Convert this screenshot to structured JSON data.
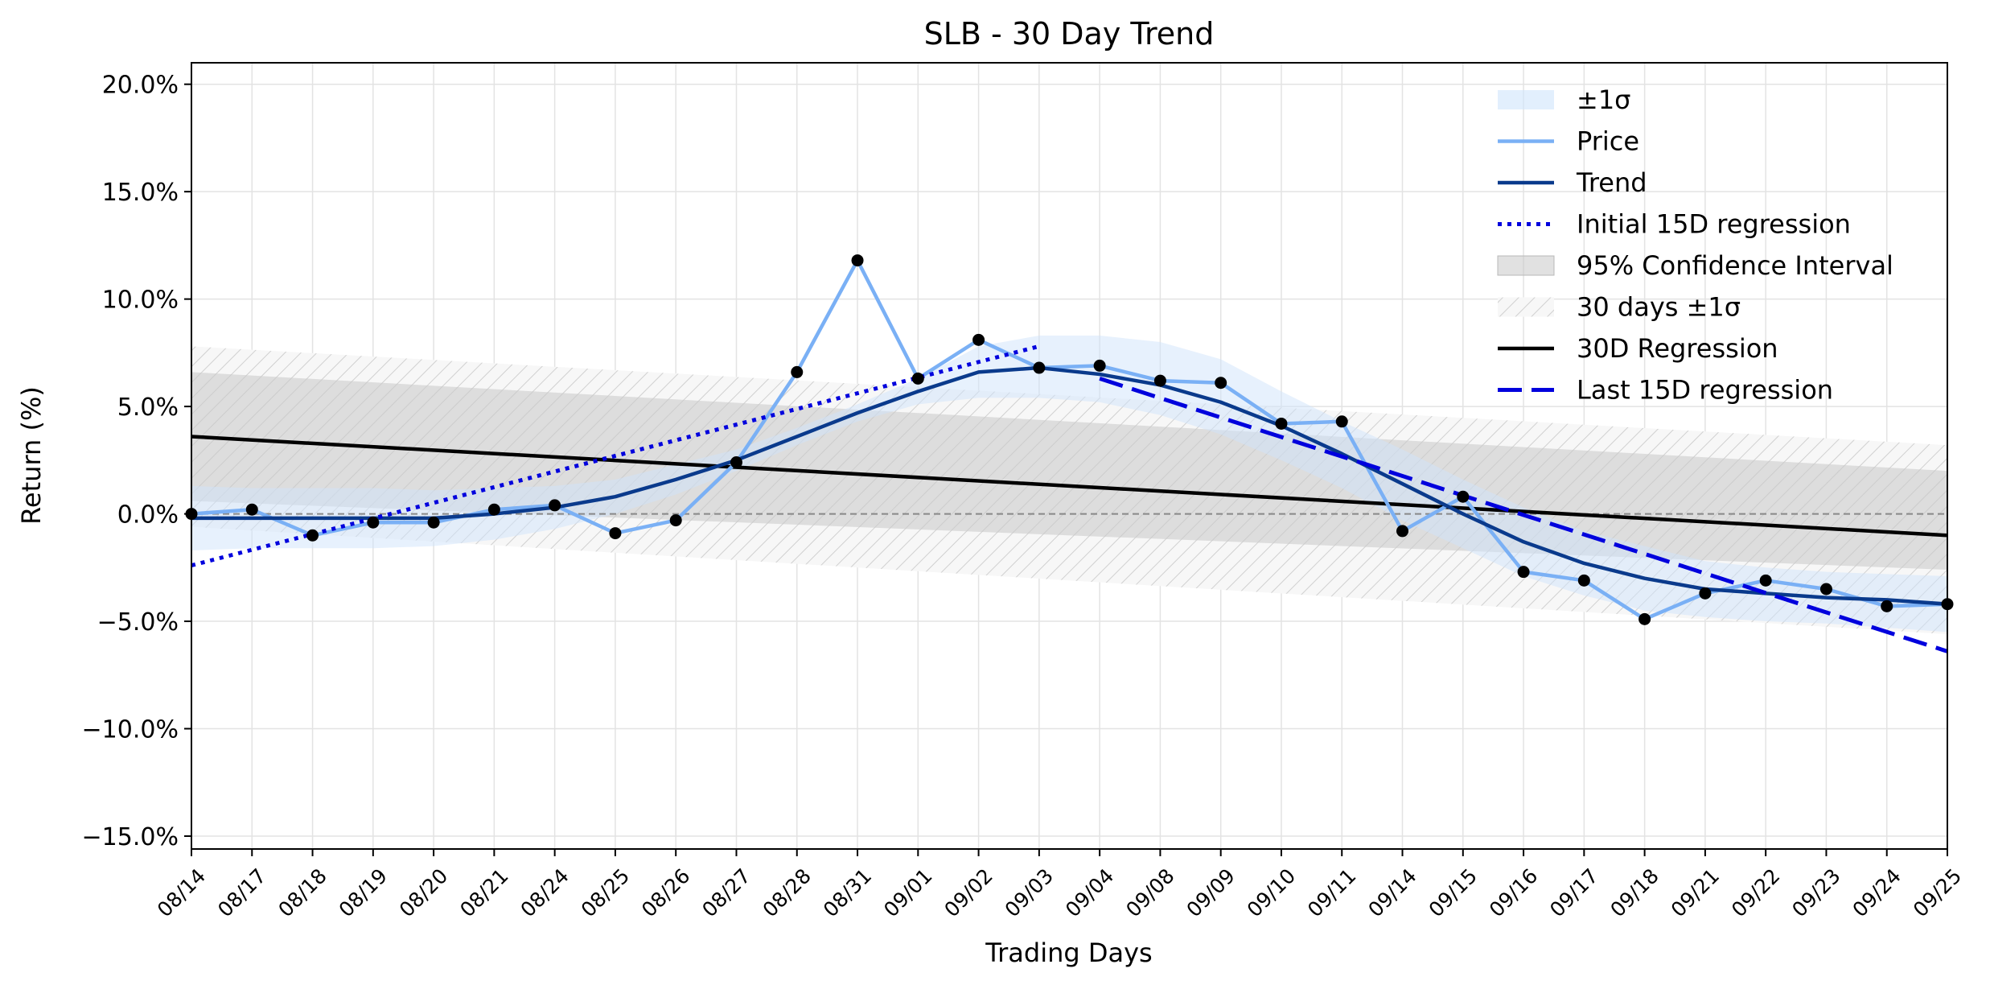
{
  "chart_data": {
    "type": "line",
    "title": "SLB - 30 Day Trend",
    "xlabel": "Trading Days",
    "ylabel": "Return (%)",
    "ylim": [
      -15.6,
      21.0
    ],
    "yticks": [
      20,
      15,
      10,
      5,
      0,
      -5,
      -10,
      -15
    ],
    "ytick_labels": [
      "20.0%",
      "15.0%",
      "10.0%",
      "5.0%",
      "0.0%",
      "−5.0%",
      "−10.0%",
      "−15.0%"
    ],
    "categories": [
      "08/14",
      "08/17",
      "08/18",
      "08/19",
      "08/20",
      "08/21",
      "08/24",
      "08/25",
      "08/26",
      "08/27",
      "08/28",
      "08/31",
      "09/01",
      "09/02",
      "09/03",
      "09/04",
      "09/08",
      "09/09",
      "09/10",
      "09/11",
      "09/14",
      "09/15",
      "09/16",
      "09/17",
      "09/18",
      "09/21",
      "09/22",
      "09/23",
      "09/24",
      "09/25"
    ],
    "grid": true,
    "legend_position": "top-right",
    "zero_line": 0,
    "series": [
      {
        "name": "Price",
        "color": "#7ab0f5",
        "values": [
          0.0,
          0.2,
          -1.0,
          -0.4,
          -0.4,
          0.2,
          0.4,
          -0.9,
          -0.3,
          2.4,
          6.6,
          11.8,
          6.3,
          8.1,
          6.8,
          6.9,
          6.2,
          6.1,
          4.2,
          4.3,
          -0.8,
          0.8,
          -2.7,
          -3.1,
          -4.9,
          -3.7,
          -3.1,
          -3.5,
          -4.3,
          -4.2
        ]
      },
      {
        "name": "Trend",
        "color": "#0a3a8c",
        "values": [
          -0.2,
          -0.2,
          -0.2,
          -0.2,
          -0.2,
          0.0,
          0.3,
          0.8,
          1.6,
          2.5,
          3.6,
          4.7,
          5.7,
          6.6,
          6.8,
          6.5,
          6.0,
          5.2,
          4.1,
          2.8,
          1.4,
          0.0,
          -1.3,
          -2.3,
          -3.0,
          -3.5,
          -3.7,
          -3.9,
          -4.0,
          -4.2
        ]
      },
      {
        "name": "Initial 15D regression",
        "color": "#0000dd",
        "x": [
          0,
          14
        ],
        "values": [
          -2.4,
          7.8
        ]
      },
      {
        "name": "30D Regression",
        "color": "#000000",
        "x": [
          0,
          29
        ],
        "values": [
          3.6,
          -1.0
        ]
      },
      {
        "name": "Last 15D regression",
        "color": "#0000dd",
        "x": [
          15,
          29
        ],
        "values": [
          6.3,
          -6.4
        ]
      }
    ],
    "bands": [
      {
        "name": "±1σ",
        "color": "#cfe4fb",
        "lower": [
          -1.7,
          -1.6,
          -1.6,
          -1.6,
          -1.5,
          -1.2,
          -0.7,
          0.0,
          0.9,
          2.0,
          3.2,
          4.3,
          5.1,
          5.4,
          5.4,
          5.2,
          4.6,
          3.7,
          2.5,
          1.2,
          -0.3,
          -1.6,
          -2.9,
          -3.8,
          -4.5,
          -4.8,
          -5.0,
          -5.1,
          -5.3,
          -5.5
        ],
        "upper": [
          1.3,
          1.2,
          1.2,
          1.2,
          1.1,
          1.2,
          1.3,
          1.6,
          2.3,
          3.0,
          4.0,
          5.1,
          6.3,
          7.8,
          8.3,
          8.3,
          8.0,
          7.2,
          5.7,
          4.3,
          3.0,
          1.6,
          0.3,
          -0.8,
          -1.5,
          -2.2,
          -2.5,
          -2.7,
          -2.8,
          -2.9
        ]
      },
      {
        "name": "95% Confidence Interval",
        "color": "#c8c8c8",
        "x": [
          0,
          29
        ],
        "lower": [
          0.6,
          -2.6
        ],
        "upper": [
          6.6,
          2.0
        ]
      },
      {
        "name": "30 days ±1σ",
        "color": "#dddddd",
        "x": [
          0,
          29
        ],
        "lower": [
          -0.6,
          -5.6
        ],
        "upper": [
          7.8,
          3.2
        ]
      }
    ],
    "markers": {
      "color": "#000000"
    }
  }
}
